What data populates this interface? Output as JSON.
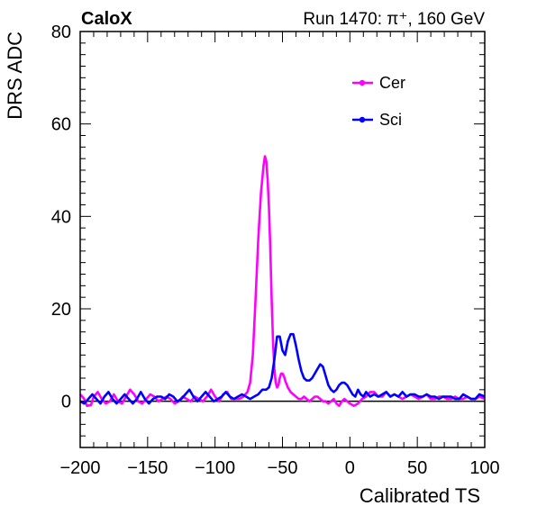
{
  "header": {
    "experiment": "CaloX",
    "run_info": "Run 1470:   π⁺, 160 GeV"
  },
  "chart_data": {
    "type": "line",
    "xlabel": "Calibrated TS",
    "ylabel": "DRS ADC",
    "xlim": [
      -200,
      100
    ],
    "ylim": [
      -10,
      80
    ],
    "x_ticks": [
      -200,
      -150,
      -100,
      -50,
      0,
      50,
      100
    ],
    "x_tick_labels": [
      "−200",
      "−150",
      "−100",
      "−50",
      "0",
      "50",
      "100"
    ],
    "y_ticks": [
      0,
      20,
      40,
      60,
      80
    ],
    "y_tick_labels": [
      "0",
      "20",
      "40",
      "60",
      "80"
    ],
    "legend_position": "top-right",
    "baseline": 0,
    "series": [
      {
        "name": "Cer",
        "color": "#ff00ff",
        "x": [
          -200,
          -197,
          -195,
          -192,
          -190,
          -187,
          -184,
          -181,
          -178,
          -175,
          -172,
          -169,
          -166,
          -163,
          -160,
          -157,
          -154,
          -151,
          -148,
          -145,
          -142,
          -139,
          -136,
          -133,
          -130,
          -127,
          -124,
          -121,
          -118,
          -115,
          -112,
          -109,
          -106,
          -103,
          -100,
          -97,
          -94,
          -91,
          -88,
          -85,
          -82,
          -79,
          -76,
          -74,
          -72,
          -70,
          -68,
          -66,
          -64,
          -63,
          -62,
          -61,
          -60,
          -59,
          -58,
          -57,
          -56,
          -55,
          -54,
          -53,
          -52,
          -51,
          -50,
          -49,
          -48,
          -46,
          -44,
          -42,
          -40,
          -38,
          -36,
          -34,
          -32,
          -30,
          -28,
          -26,
          -24,
          -22,
          -20,
          -18,
          -16,
          -14,
          -12,
          -10,
          -8,
          -6,
          -4,
          -2,
          0,
          3,
          6,
          9,
          12,
          15,
          18,
          21,
          24,
          27,
          30,
          33,
          36,
          39,
          42,
          45,
          48,
          51,
          54,
          57,
          60,
          63,
          66,
          69,
          72,
          75,
          78,
          81,
          84,
          87,
          90,
          93,
          96,
          100
        ],
        "y": [
          1.5,
          0.5,
          -1.0,
          -0.8,
          1.0,
          2.0,
          0.5,
          -0.5,
          0.0,
          1.5,
          0.0,
          -0.5,
          1.0,
          2.5,
          1.5,
          0.0,
          -0.5,
          0.5,
          1.5,
          1.0,
          0.0,
          0.5,
          1.0,
          0.5,
          -0.5,
          0.0,
          1.0,
          0.5,
          0.0,
          1.0,
          0.5,
          0.0,
          1.0,
          2.5,
          1.0,
          0.0,
          1.5,
          2.0,
          0.5,
          0.5,
          0.5,
          1.0,
          2.0,
          4.0,
          10.0,
          22.0,
          35.0,
          45.0,
          51.0,
          53.0,
          52.0,
          48.0,
          42.0,
          33.0,
          22.0,
          13.0,
          7.0,
          4.0,
          3.0,
          3.5,
          5.0,
          6.0,
          6.0,
          5.5,
          4.5,
          3.0,
          2.0,
          1.5,
          1.0,
          0.5,
          0.5,
          1.0,
          0.5,
          0.0,
          0.5,
          1.0,
          1.0,
          0.5,
          0.0,
          0.0,
          -0.5,
          0.0,
          0.5,
          -0.5,
          -1.0,
          0.0,
          0.5,
          0.0,
          -0.5,
          -1.0,
          -0.5,
          0.5,
          1.0,
          2.0,
          2.0,
          1.0,
          1.0,
          2.0,
          1.0,
          1.5,
          1.0,
          0.5,
          1.0,
          1.5,
          1.0,
          0.5,
          1.0,
          1.5,
          0.5,
          0.5,
          1.0,
          1.0,
          0.5,
          0.5,
          1.0,
          0.5,
          0.5,
          1.0,
          0.5,
          0.5,
          1.0,
          0.5
        ]
      },
      {
        "name": "Sci",
        "color": "#0000ff",
        "x": [
          -200,
          -197,
          -194,
          -191,
          -188,
          -185,
          -182,
          -179,
          -176,
          -173,
          -170,
          -167,
          -164,
          -161,
          -158,
          -155,
          -152,
          -149,
          -146,
          -143,
          -140,
          -137,
          -134,
          -131,
          -128,
          -125,
          -122,
          -119,
          -116,
          -113,
          -110,
          -107,
          -104,
          -101,
          -98,
          -95,
          -92,
          -89,
          -86,
          -83,
          -80,
          -77,
          -74,
          -71,
          -68,
          -65,
          -62,
          -60,
          -58,
          -56,
          -54,
          -52,
          -50,
          -48,
          -46,
          -44,
          -42,
          -40,
          -38,
          -36,
          -34,
          -32,
          -30,
          -28,
          -26,
          -24,
          -22,
          -20,
          -18,
          -16,
          -14,
          -12,
          -10,
          -8,
          -6,
          -4,
          -2,
          0,
          2,
          4,
          6,
          8,
          10,
          12,
          15,
          18,
          21,
          24,
          27,
          30,
          33,
          36,
          39,
          42,
          45,
          48,
          51,
          54,
          57,
          60,
          63,
          66,
          69,
          72,
          75,
          78,
          81,
          84,
          87,
          90,
          93,
          96,
          100
        ],
        "y": [
          0.0,
          -0.5,
          0.5,
          1.5,
          0.5,
          -0.5,
          1.0,
          2.0,
          0.5,
          -0.5,
          0.5,
          1.5,
          0.5,
          -0.5,
          0.5,
          2.0,
          0.5,
          -0.5,
          0.5,
          1.0,
          1.0,
          0.5,
          1.5,
          1.0,
          0.0,
          0.5,
          1.5,
          2.5,
          1.0,
          0.0,
          1.0,
          2.0,
          1.0,
          0.0,
          0.5,
          1.0,
          2.0,
          1.0,
          0.5,
          1.0,
          1.5,
          1.0,
          0.5,
          1.0,
          1.5,
          2.5,
          2.5,
          3.0,
          5.0,
          9.0,
          14.0,
          14.0,
          11.0,
          10.0,
          13.0,
          14.5,
          14.5,
          12.0,
          9.0,
          6.5,
          5.0,
          4.5,
          4.5,
          5.0,
          6.0,
          7.0,
          8.0,
          7.5,
          5.5,
          3.5,
          2.5,
          2.0,
          2.5,
          3.5,
          4.0,
          4.0,
          3.5,
          2.5,
          1.5,
          1.0,
          2.5,
          1.5,
          1.0,
          2.0,
          1.0,
          1.5,
          1.0,
          1.5,
          2.0,
          1.0,
          1.5,
          1.0,
          2.0,
          1.0,
          1.5,
          1.5,
          1.0,
          1.0,
          1.5,
          1.0,
          1.0,
          0.5,
          1.0,
          1.0,
          1.0,
          0.5,
          0.5,
          1.5,
          1.0,
          0.5,
          0.5,
          1.5,
          1.0
        ]
      }
    ]
  }
}
